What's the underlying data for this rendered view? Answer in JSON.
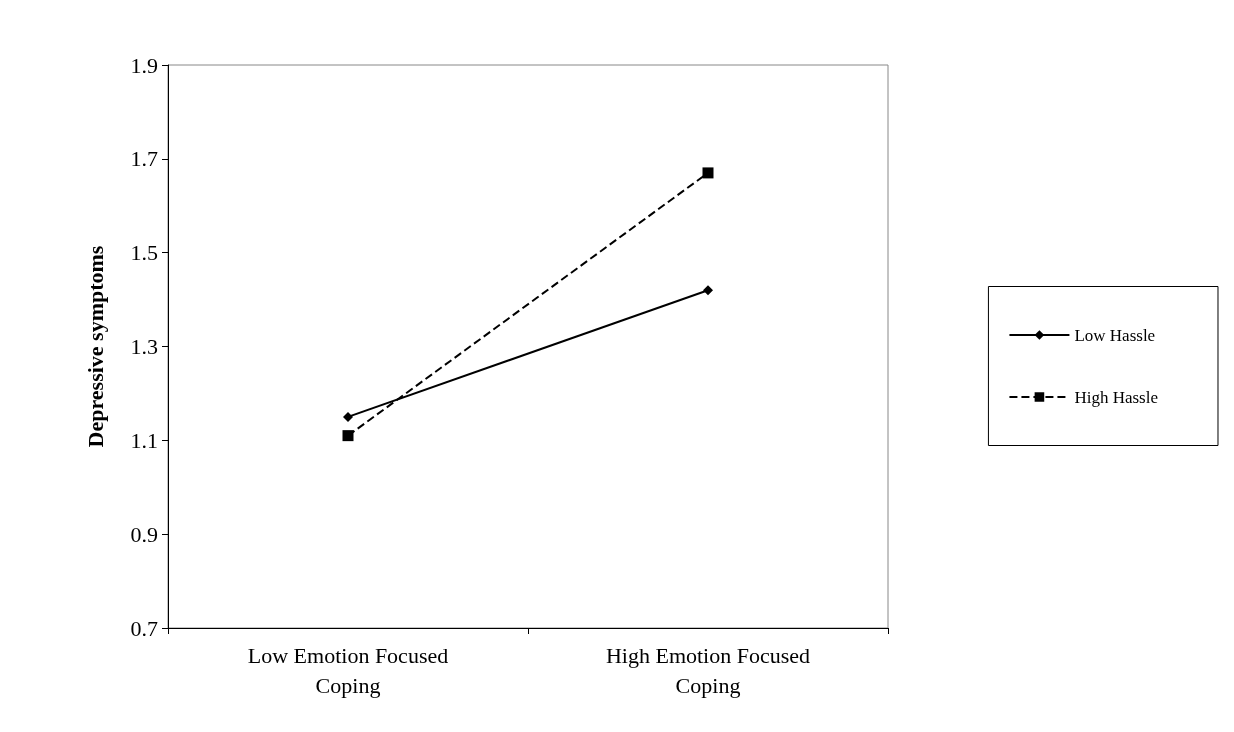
{
  "chart_data": {
    "type": "line",
    "ylabel": "Depressive symptoms",
    "categories": [
      "Low Emotion Focused\nCoping",
      "High Emotion Focused\nCoping"
    ],
    "series": [
      {
        "name": "Low Hassle",
        "color": "#000000",
        "values": [
          1.15,
          1.42
        ],
        "marker": "diamond",
        "line_style": "solid"
      },
      {
        "name": "High Hassle",
        "color": "#000000",
        "values": [
          1.11,
          1.67
        ],
        "marker": "square",
        "line_style": "dashed"
      }
    ],
    "ylim": [
      0.7,
      1.9
    ],
    "yticks": [
      0.7,
      0.9,
      1.1,
      1.3,
      1.5,
      1.7,
      1.9
    ],
    "grid": false,
    "legend": "right"
  }
}
